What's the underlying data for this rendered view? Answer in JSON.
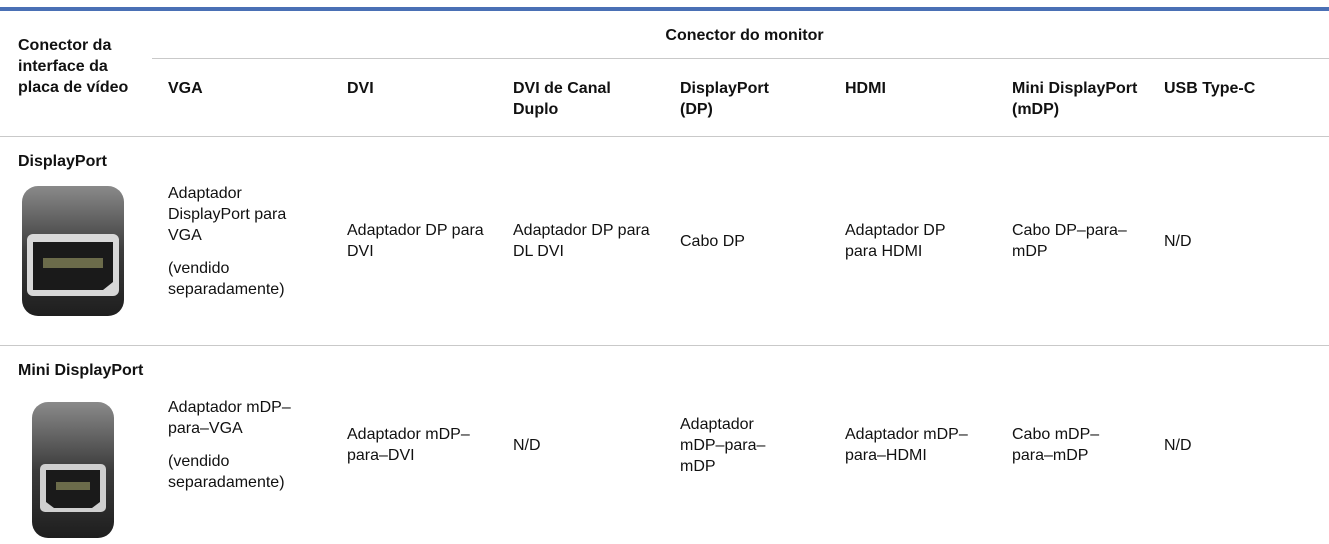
{
  "table": {
    "header": {
      "corner": "Conector da interface da placa de vídeo",
      "group": "Conector do monitor",
      "columns": [
        "VGA",
        "DVI",
        "DVI de Canal Duplo",
        "DisplayPort (DP)",
        "HDMI",
        "Mini DisplayPort (mDP)",
        "USB Type-C"
      ]
    },
    "rows": [
      {
        "label": "DisplayPort",
        "cells": [
          [
            "Adaptador DisplayPort para VGA",
            "(vendido separadamente)"
          ],
          [
            "Adaptador DP para DVI"
          ],
          [
            "Adaptador DP para DL DVI"
          ],
          [
            "Cabo DP"
          ],
          [
            "Adaptador DP para HDMI"
          ],
          [
            "Cabo DP–para–mDP"
          ],
          [
            "N/D"
          ]
        ]
      },
      {
        "label": "Mini DisplayPort",
        "cells": [
          [
            "Adaptador mDP–para–VGA",
            "(vendido separadamente)"
          ],
          [
            "Adaptador mDP–para–DVI"
          ],
          [
            "N/D"
          ],
          [
            "Adaptador mDP–para–mDP"
          ],
          [
            "Adaptador mDP–para–HDMI"
          ],
          [
            "Cabo mDP–para–mDP"
          ],
          [
            "N/D"
          ]
        ]
      }
    ]
  }
}
